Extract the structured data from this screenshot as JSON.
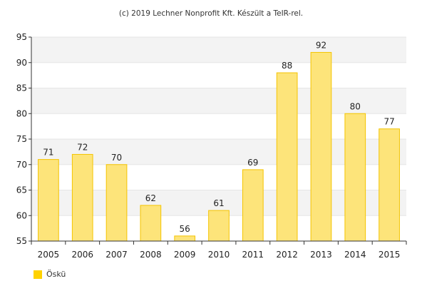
{
  "chart_data": {
    "type": "bar",
    "title": "(c) 2019 Lechner Nonprofit Kft. Készült a TeIR-rel.",
    "categories": [
      "2005",
      "2006",
      "2007",
      "2008",
      "2009",
      "2010",
      "2011",
      "2012",
      "2013",
      "2014",
      "2015"
    ],
    "series": [
      {
        "name": "Öskü",
        "values": [
          71,
          72,
          70,
          62,
          56,
          61,
          69,
          88,
          92,
          80,
          77
        ]
      }
    ],
    "yticks": [
      55,
      60,
      65,
      70,
      75,
      80,
      85,
      90,
      95
    ],
    "ylim": [
      55,
      95
    ],
    "grid": true,
    "legend_position": "bottom-left",
    "colors": {
      "bar_fill": "#fde47a",
      "bar_stroke": "#f4c400",
      "band": "#f3f3f3",
      "legend_swatch": "#ffd200",
      "axis": "#333333",
      "label": "#222222"
    }
  }
}
